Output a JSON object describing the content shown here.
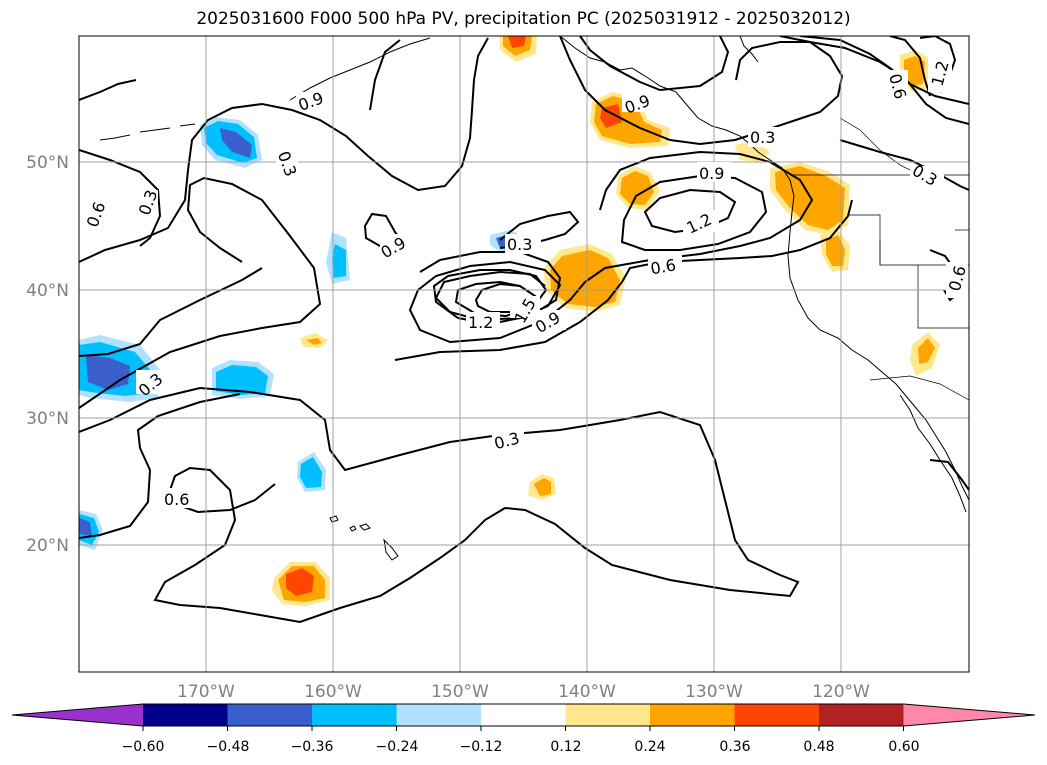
{
  "title": "2025031600 F000 500 hPa PV, precipitation PC (2025031912 - 2025032012)",
  "lat_labels": [
    "50°N",
    "40°N",
    "30°N",
    "20°N"
  ],
  "lon_labels": [
    "170°W",
    "160°W",
    "150°W",
    "140°W",
    "130°W",
    "120°W"
  ],
  "contour_labels": [
    "0.3",
    "0.6",
    "0.9",
    "1.2",
    "1.5"
  ],
  "colorbar": {
    "ticks": [
      "−0.60",
      "−0.48",
      "−0.36",
      "−0.24",
      "−0.12",
      "0.12",
      "0.24",
      "0.36",
      "0.48",
      "0.60"
    ],
    "colors": [
      "#9932cc",
      "#00008b",
      "#3a5fcd",
      "#00bfff",
      "#b0e2ff",
      "#ffffff",
      "#ffe88c",
      "#ffa500",
      "#ff4500",
      "#b22222",
      "#ff88aa"
    ]
  }
}
